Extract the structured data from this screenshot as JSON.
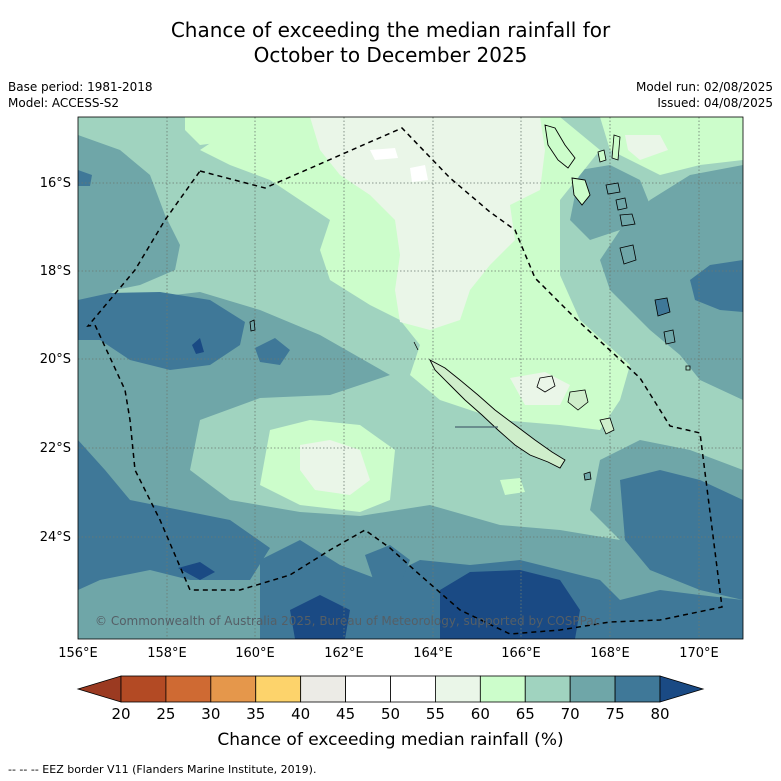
{
  "title_line1": "Chance of exceeding the median rainfall for",
  "title_line2": "October to December 2025",
  "base_period": "Base period: 1981-2018",
  "model": "Model: ACCESS-S2",
  "model_run": "Model run: 02/08/2025",
  "issued": "Issued: 04/08/2025",
  "lat_labels": [
    "16°S",
    "18°S",
    "20°S",
    "22°S",
    "24°S"
  ],
  "lon_labels": [
    "156°E",
    "158°E",
    "160°E",
    "162°E",
    "164°E",
    "166°E",
    "168°E",
    "170°E"
  ],
  "copyright": "© Commonwealth of Australia 2025, Bureau of Meteorology, supported by COSPPac",
  "colorbar": {
    "label": "Chance of exceeding median rainfall (%)",
    "ticks": [
      "20",
      "25",
      "30",
      "35",
      "40",
      "45",
      "50",
      "55",
      "60",
      "65",
      "70",
      "75",
      "80"
    ],
    "colors": [
      "#9b3a21",
      "#b34a24",
      "#cf6a33",
      "#e5974b",
      "#fdd36b",
      "#ecebe6",
      "#ffffff",
      "#ffffff",
      "#eaf6e8",
      "#ccfdcb",
      "#a0d3bf",
      "#6fa6a8",
      "#3f7898",
      "#1a4a84"
    ]
  },
  "footnote": "--  --  -- EEZ border V11 (Flanders Marine Institute, 2019)."
}
